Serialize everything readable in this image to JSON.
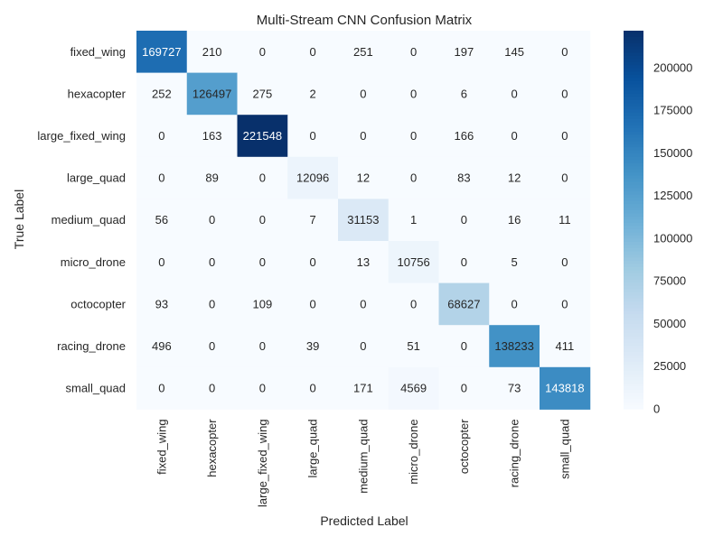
{
  "chart_data": {
    "type": "heatmap",
    "title": "Multi-Stream CNN Confusion Matrix",
    "xlabel": "Predicted Label",
    "ylabel": "True Label",
    "x_categories": [
      "fixed_wing",
      "hexacopter",
      "large_fixed_wing",
      "large_quad",
      "medium_quad",
      "micro_drone",
      "octocopter",
      "racing_drone",
      "small_quad"
    ],
    "y_categories": [
      "fixed_wing",
      "hexacopter",
      "large_fixed_wing",
      "large_quad",
      "medium_quad",
      "micro_drone",
      "octocopter",
      "racing_drone",
      "small_quad"
    ],
    "values": [
      [
        169727,
        210,
        0,
        0,
        251,
        0,
        197,
        145,
        0
      ],
      [
        252,
        126497,
        275,
        2,
        0,
        0,
        6,
        0,
        0
      ],
      [
        0,
        163,
        221548,
        0,
        0,
        0,
        166,
        0,
        0
      ],
      [
        0,
        89,
        0,
        12096,
        12,
        0,
        83,
        12,
        0
      ],
      [
        56,
        0,
        0,
        7,
        31153,
        1,
        0,
        16,
        11
      ],
      [
        0,
        0,
        0,
        0,
        13,
        10756,
        0,
        5,
        0
      ],
      [
        93,
        0,
        109,
        0,
        0,
        0,
        68627,
        0,
        0
      ],
      [
        496,
        0,
        0,
        39,
        0,
        51,
        0,
        138233,
        411
      ],
      [
        0,
        0,
        0,
        0,
        171,
        4569,
        0,
        73,
        143818
      ]
    ],
    "colorbar": {
      "colormap": "Blues",
      "range": [
        0,
        221548
      ],
      "ticks": [
        0,
        25000,
        50000,
        75000,
        100000,
        125000,
        150000,
        175000,
        200000
      ]
    }
  }
}
